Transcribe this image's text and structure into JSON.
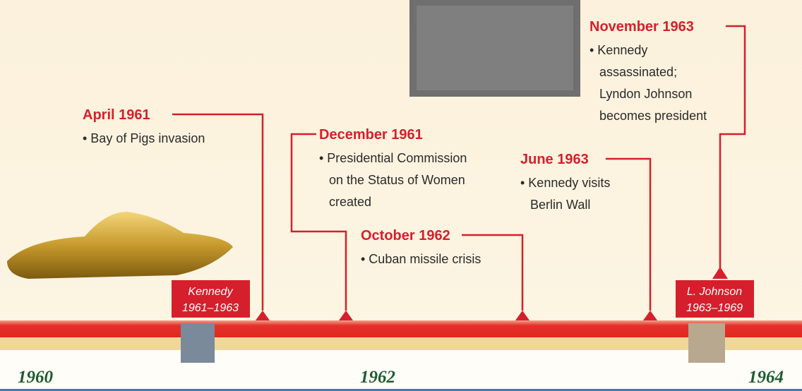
{
  "events": [
    {
      "date": "April 1961",
      "lines": [
        "• Bay of Pigs invasion"
      ]
    },
    {
      "date": "December 1961",
      "lines": [
        "• Presidential Commission",
        "on the Status of Women",
        "created"
      ]
    },
    {
      "date": "October 1962",
      "lines": [
        "• Cuban missile crisis"
      ]
    },
    {
      "date": "June 1963",
      "lines": [
        "• Kennedy visits",
        "Berlin Wall"
      ]
    },
    {
      "date": "November 1963",
      "lines": [
        "• Kennedy",
        "assassinated;",
        "Lyndon Johnson",
        "becomes president"
      ]
    }
  ],
  "presidents": [
    {
      "name": "Kennedy",
      "term": "1961–1963"
    },
    {
      "name": "L. Johnson",
      "term": "1963–1969"
    }
  ],
  "years": [
    "1960",
    "1962",
    "1964"
  ]
}
